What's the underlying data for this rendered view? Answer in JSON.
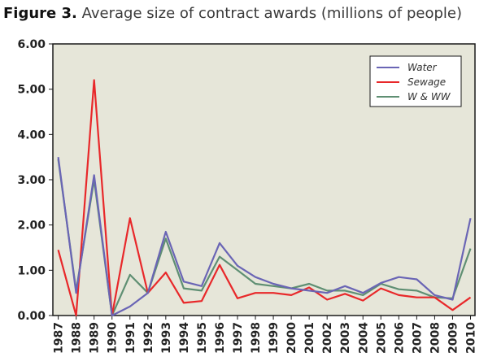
{
  "chart_data": {
    "type": "line",
    "title_prefix": "Figure 3.",
    "title": "Average size of contract awards (millions of people)",
    "categories": [
      "1987",
      "1988",
      "1989",
      "1990",
      "1991",
      "1992",
      "1993",
      "1994",
      "1995",
      "1996",
      "1997",
      "1998",
      "1999",
      "2000",
      "2001",
      "2002",
      "2003",
      "2004",
      "2005",
      "2006",
      "2007",
      "2008",
      "2009",
      "2010"
    ],
    "ylim": [
      0,
      6
    ],
    "yticks": [
      "0.00",
      "1.00",
      "2.00",
      "3.00",
      "4.00",
      "5.00",
      "6.00"
    ],
    "series": [
      {
        "name": "Water",
        "color": "#6a65b5",
        "values": [
          3.5,
          0.5,
          3.1,
          0.0,
          0.2,
          0.5,
          1.85,
          0.75,
          0.65,
          1.6,
          1.1,
          0.85,
          0.7,
          0.6,
          0.55,
          0.5,
          0.65,
          0.5,
          0.72,
          0.85,
          0.8,
          0.45,
          0.35,
          2.15
        ]
      },
      {
        "name": "Sewage",
        "color": "#e8282a",
        "values": [
          1.45,
          0.0,
          5.2,
          0.0,
          2.15,
          0.5,
          0.95,
          0.28,
          0.32,
          1.12,
          0.38,
          0.5,
          0.5,
          0.45,
          0.62,
          0.35,
          0.48,
          0.33,
          0.6,
          0.45,
          0.4,
          0.4,
          0.12,
          0.4
        ]
      },
      {
        "name": "W & WW",
        "color": "#5f8f73",
        "values": [
          3.45,
          0.55,
          3.0,
          0.0,
          0.9,
          0.5,
          1.7,
          0.6,
          0.55,
          1.3,
          1.0,
          0.7,
          0.65,
          0.6,
          0.7,
          0.55,
          0.55,
          0.45,
          0.7,
          0.58,
          0.55,
          0.4,
          0.38,
          1.48
        ]
      }
    ],
    "legend": "top-right",
    "grid": false,
    "colors": {
      "plot_bg": "#e6e6d9",
      "frame": "#1a1a1a"
    }
  }
}
